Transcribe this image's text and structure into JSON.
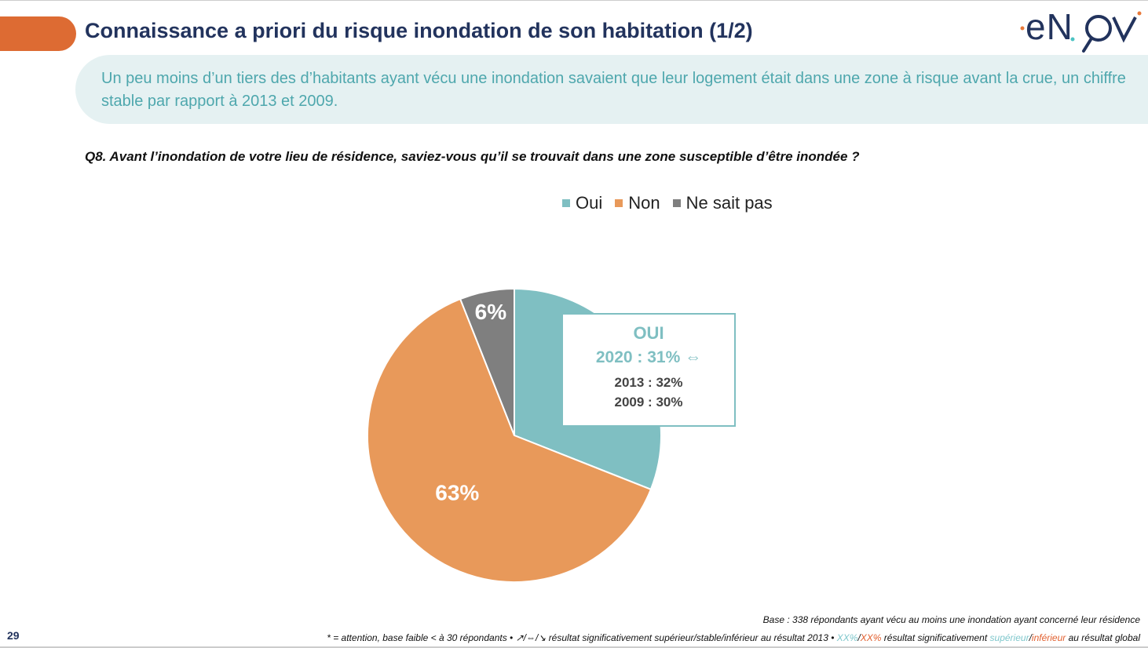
{
  "header": {
    "title": "Connaissance a priori du risque inondation de son habitation (1/2)",
    "logo": "enov",
    "page_number": "29"
  },
  "banner": {
    "text": "Un peu moins d’un tiers des d’habitants ayant vécu une inondation savaient que leur logement était dans une zone à risque avant la crue, un chiffre stable par rapport à 2013 et 2009."
  },
  "question": "Q8. Avant l’inondation de votre lieu de résidence, saviez-vous qu’il se trouvait dans une zone susceptible d’être inondée ?",
  "chart_data": {
    "type": "pie",
    "categories": [
      "Oui",
      "Non",
      "Ne sait pas"
    ],
    "values": [
      31,
      63,
      6
    ],
    "labels": [
      "",
      "63%",
      "6%"
    ],
    "colors": [
      "#7fbfc2",
      "#e8995a",
      "#7f7f7f"
    ],
    "legend": "top",
    "start": "top, clockwise"
  },
  "callout": {
    "title": "OUI",
    "current": "2020 : 31%",
    "trend_icon": "stable-arrow-icon",
    "trend_glyph": "⇔",
    "y2013": "2013 : 32%",
    "y2009": "2009 : 30%"
  },
  "footer": {
    "base": "Base : 338 répondants ayant vécu au moins une inondation ayant concerné leur résidence",
    "note_a": "* = attention, base faible < à 30 répondants • ↗/⇔/↘ résultat significativement supérieur/stable/inférieur au résultat 2013 • ",
    "xx1": "XX%",
    "slash": "/",
    "xx2": "XX%",
    "note_b": " résultat significativement ",
    "sup": "supérieur",
    "inf": "inférieur",
    "note_c": " au résultat global"
  }
}
